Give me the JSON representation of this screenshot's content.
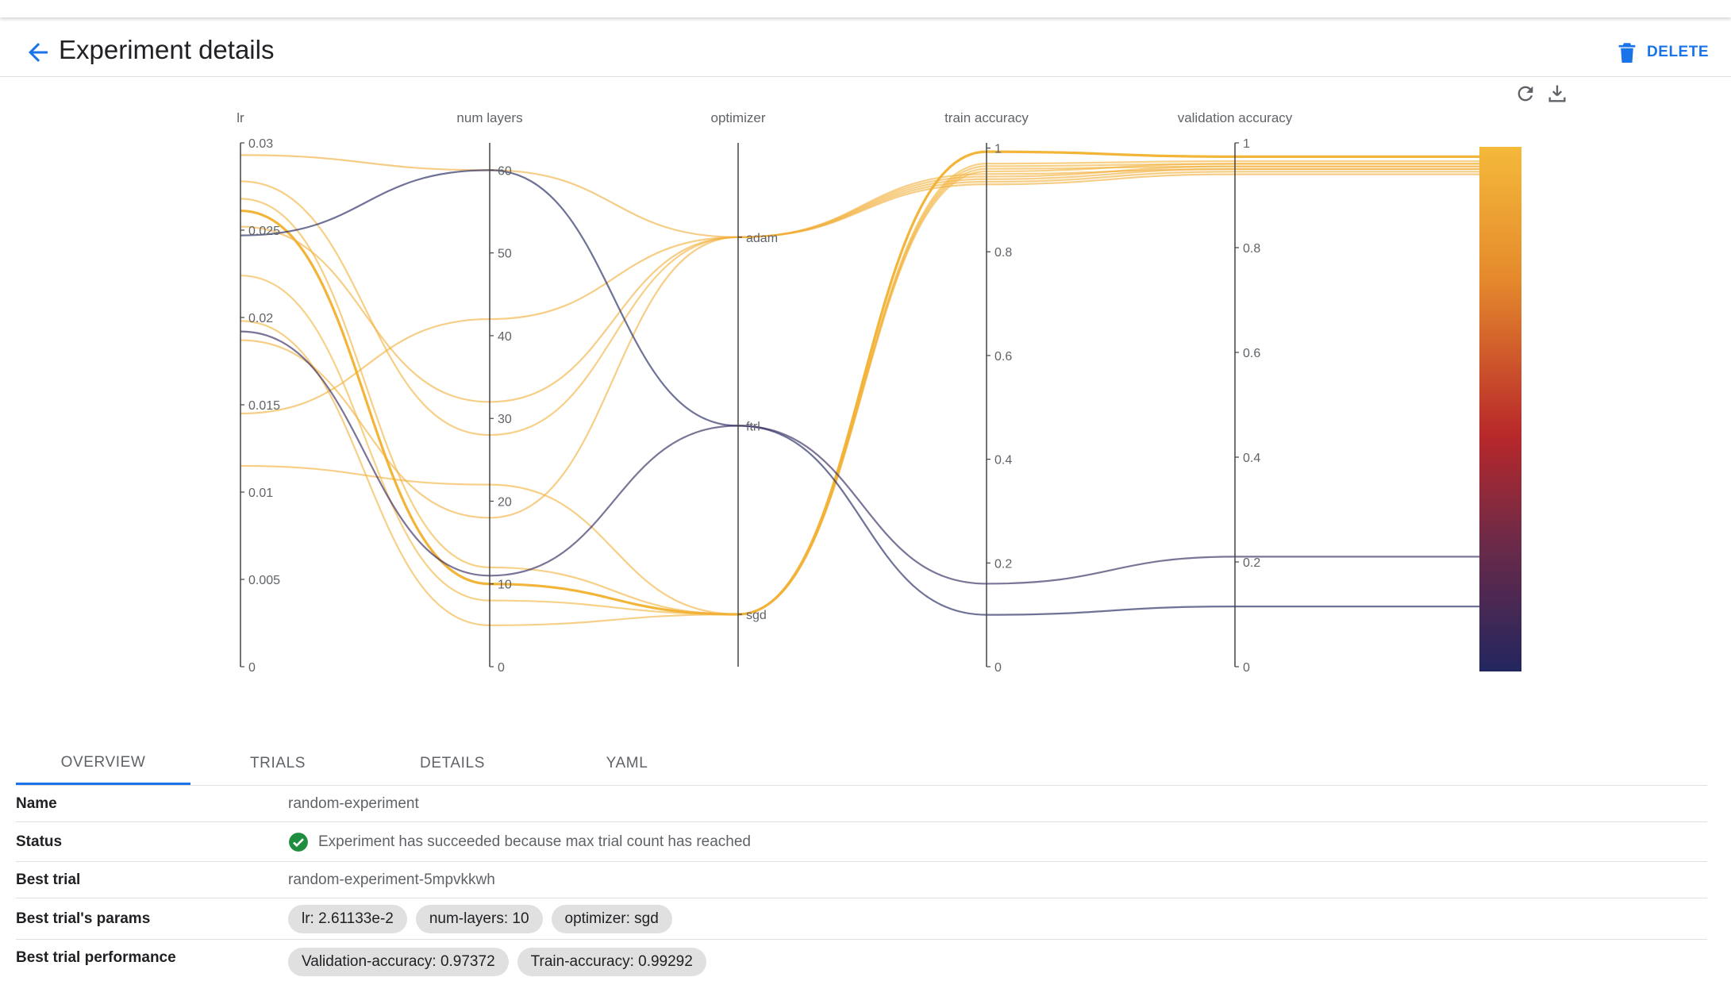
{
  "header": {
    "title": "Experiment details",
    "delete_label": "DELETE"
  },
  "icons": {
    "back": "arrow-back-icon",
    "delete": "trash-icon",
    "refresh": "refresh-icon",
    "download": "download-icon",
    "success": "check-circle-icon"
  },
  "colors": {
    "accent": "#1a73e8",
    "success": "#1e8e3e",
    "colorscale": [
      "#f4b93a",
      "#e58a2c",
      "#c0392b",
      "#7a2a3f",
      "#4a2a5c",
      "#22265f"
    ]
  },
  "chart_data": {
    "type": "parallel_coordinates",
    "axes": [
      {
        "name": "lr",
        "ticks": [
          "0",
          "0.005",
          "0.01",
          "0.015",
          "0.02",
          "0.025",
          "0.03"
        ],
        "range": [
          0,
          0.03
        ]
      },
      {
        "name": "num layers",
        "ticks": [
          "0",
          "10",
          "20",
          "30",
          "40",
          "50",
          "60"
        ],
        "range": [
          0,
          63.3
        ]
      },
      {
        "name": "optimizer",
        "ticks": [
          "sgd",
          "ftrl",
          "adam"
        ],
        "categorical": true
      },
      {
        "name": "train accuracy",
        "ticks": [
          "0",
          "0.2",
          "0.4",
          "0.6",
          "0.8",
          "1"
        ],
        "range": [
          0,
          1.01
        ]
      },
      {
        "name": "validation accuracy",
        "ticks": [
          "0",
          "0.2",
          "0.4",
          "0.6",
          "0.8",
          "1"
        ],
        "range": [
          0,
          1.0
        ]
      }
    ],
    "colorscale_range": [
      0.13,
      0.99
    ],
    "trials": [
      {
        "lr": 0.02611,
        "layers": 10,
        "optimizer": "sgd",
        "train": 0.99292,
        "val": 0.97372
      },
      {
        "lr": 0.0293,
        "layers": 60,
        "optimizer": "adam",
        "train": 0.93,
        "val": 0.94
      },
      {
        "lr": 0.0145,
        "layers": 42,
        "optimizer": "adam",
        "train": 0.935,
        "val": 0.945
      },
      {
        "lr": 0.0252,
        "layers": 32,
        "optimizer": "adam",
        "train": 0.94,
        "val": 0.95
      },
      {
        "lr": 0.0278,
        "layers": 28,
        "optimizer": "adam",
        "train": 0.945,
        "val": 0.955
      },
      {
        "lr": 0.0187,
        "layers": 18,
        "optimizer": "adam",
        "train": 0.95,
        "val": 0.95
      },
      {
        "lr": 0.0115,
        "layers": 22,
        "optimizer": "sgd",
        "train": 0.96,
        "val": 0.955
      },
      {
        "lr": 0.0268,
        "layers": 12,
        "optimizer": "sgd",
        "train": 0.965,
        "val": 0.96
      },
      {
        "lr": 0.0224,
        "layers": 8,
        "optimizer": "sgd",
        "train": 0.97,
        "val": 0.965
      },
      {
        "lr": 0.0198,
        "layers": 5,
        "optimizer": "sgd",
        "train": 0.955,
        "val": 0.96
      },
      {
        "lr": 0.0247,
        "layers": 60,
        "optimizer": "ftrl",
        "train": 0.1,
        "val": 0.115
      },
      {
        "lr": 0.0192,
        "layers": 11,
        "optimizer": "ftrl",
        "train": 0.16,
        "val": 0.21
      }
    ]
  },
  "tabs": [
    {
      "label": "OVERVIEW",
      "active": true
    },
    {
      "label": "TRIALS",
      "active": false
    },
    {
      "label": "DETAILS",
      "active": false
    },
    {
      "label": "YAML",
      "active": false
    }
  ],
  "overview": {
    "name_label": "Name",
    "name_value": "random-experiment",
    "status_label": "Status",
    "status_value": "Experiment has succeeded because max trial count has reached",
    "best_trial_label": "Best trial",
    "best_trial_value": "random-experiment-5mpvkkwh",
    "params_label": "Best trial's params",
    "params": [
      "lr: 2.61133e-2",
      "num-layers: 10",
      "optimizer: sgd"
    ],
    "performance_label": "Best trial performance",
    "performance": [
      "Validation-accuracy: 0.97372",
      "Train-accuracy: 0.99292"
    ]
  }
}
